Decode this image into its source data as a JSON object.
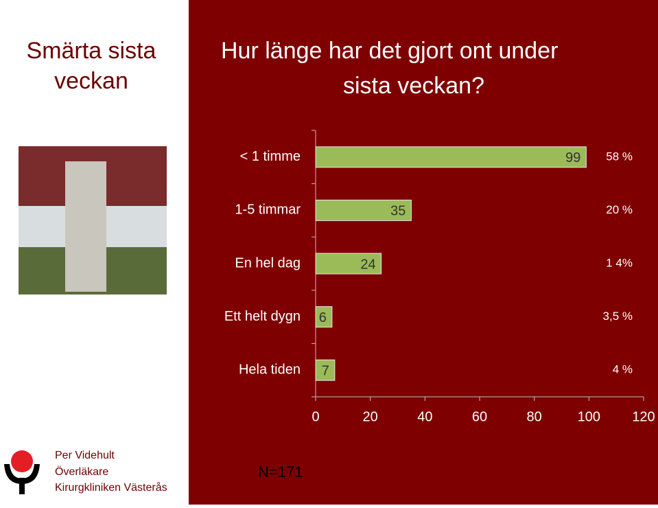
{
  "slide": {
    "heading_lines": [
      "Smärta sista",
      "veckan"
    ],
    "footer_lines": [
      "Per Videhult",
      "Överläkare",
      "Kirurgkliniken Västerås"
    ],
    "note": "N=171"
  },
  "chart_data": {
    "type": "bar",
    "orientation": "horizontal",
    "title_lines": [
      "Hur länge har det gjort ont under",
      "sista veckan?"
    ],
    "categories": [
      "< 1 timme",
      "1-5 timmar",
      "En hel dag",
      "Ett helt dygn",
      "Hela tiden"
    ],
    "values": [
      99,
      35,
      24,
      6,
      7
    ],
    "percent_labels": [
      "58 %",
      "20 %",
      "1 4%",
      "3,5 %",
      "4 %"
    ],
    "color": "#9bbb59",
    "xlim": [
      0,
      120
    ],
    "xticks": [
      0,
      20,
      40,
      60,
      80,
      100,
      120
    ],
    "grid": false
  }
}
